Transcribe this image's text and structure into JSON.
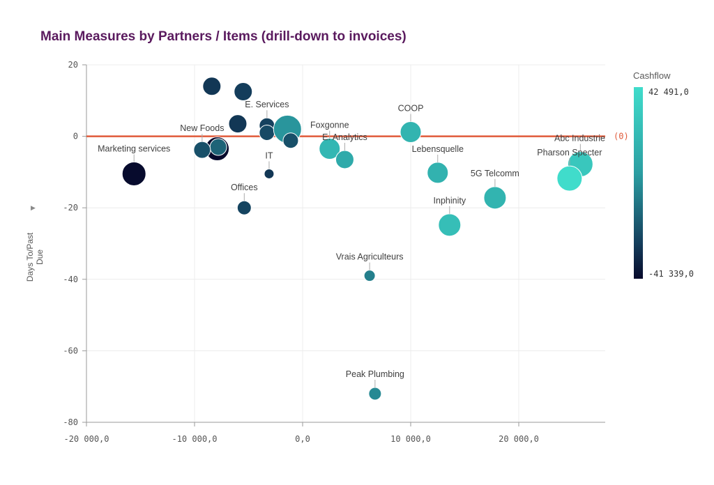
{
  "title": "Main Measures by Partners / Items (drill-down to invoices)",
  "colors": {
    "title": "#5a1a5e",
    "reference_line": "#e05a3a",
    "gradient": [
      "#070a2c",
      "#15425f",
      "#2b9ea2",
      "#40dccb"
    ]
  },
  "chart_data": {
    "type": "scatter",
    "title": "Main Measures by Partners / Items (drill-down to invoices)",
    "xlabel": "",
    "ylabel": "Days To/Past Due",
    "xlim": [
      -20000,
      28000
    ],
    "ylim": [
      -80,
      20
    ],
    "x_ticks": [
      "-20 000,0",
      "-10 000,0",
      "0,0",
      "10 000,0",
      "20 000,0"
    ],
    "y_ticks": [
      "20",
      "0",
      "-20",
      "-40",
      "-60",
      "-80"
    ],
    "grid": true,
    "reference_line": {
      "y": 0,
      "label": "(0)"
    },
    "color_legend": {
      "title": "Cashflow",
      "max_label": "42 491,0",
      "min_label": "-41 339,0",
      "min": -41339,
      "max": 42491
    },
    "points": [
      {
        "name": "",
        "x": -8400,
        "y": 14,
        "size": 13,
        "cashflow": -28000
      },
      {
        "name": "",
        "x": -5500,
        "y": 12.5,
        "size": 13,
        "cashflow": -26000
      },
      {
        "name": "",
        "x": -6000,
        "y": 3.5,
        "size": 13,
        "cashflow": -28000
      },
      {
        "name": "E. Services",
        "x": -3300,
        "y": 3,
        "size": 11,
        "cashflow": -25000
      },
      {
        "name": "",
        "x": -3300,
        "y": 1,
        "size": 11,
        "cashflow": -22000
      },
      {
        "name": "",
        "x": -1400,
        "y": 2,
        "size": 20,
        "cashflow": 2000
      },
      {
        "name": "",
        "x": -1100,
        "y": -1.2,
        "size": 11,
        "cashflow": -20000
      },
      {
        "name": "",
        "x": -7900,
        "y": -3.5,
        "size": 17,
        "cashflow": -41339
      },
      {
        "name": "",
        "x": -7800,
        "y": -3,
        "size": 12,
        "cashflow": -14000
      },
      {
        "name": "New Foods",
        "x": -9300,
        "y": -3.8,
        "size": 12,
        "cashflow": -20000
      },
      {
        "name": "Marketing services",
        "x": -15600,
        "y": -10.5,
        "size": 17,
        "cashflow": -41000
      },
      {
        "name": "IT",
        "x": -3100,
        "y": -10.5,
        "size": 7,
        "cashflow": -28000
      },
      {
        "name": "Offices",
        "x": -5400,
        "y": -20,
        "size": 10,
        "cashflow": -24000
      },
      {
        "name": "Foxgonne",
        "x": 2500,
        "y": -3.5,
        "size": 15,
        "cashflow": 20000
      },
      {
        "name": "E. Analytics",
        "x": 3900,
        "y": -6.5,
        "size": 13,
        "cashflow": 12000
      },
      {
        "name": "COOP",
        "x": 10000,
        "y": 1.2,
        "size": 15,
        "cashflow": 18000
      },
      {
        "name": "Lebensquelle",
        "x": 12500,
        "y": -10.2,
        "size": 15,
        "cashflow": 17000
      },
      {
        "name": "5G Telcomm",
        "x": 17800,
        "y": -17.2,
        "size": 16,
        "cashflow": 18000
      },
      {
        "name": "Inphinity",
        "x": 13600,
        "y": -24.8,
        "size": 16,
        "cashflow": 24000
      },
      {
        "name": "Abc Industrie",
        "x": 25700,
        "y": -7.8,
        "size": 18,
        "cashflow": 30000
      },
      {
        "name": "Pharson Specter",
        "x": 24700,
        "y": -11.8,
        "size": 18,
        "cashflow": 42491
      },
      {
        "name": "Vrais Agriculteurs",
        "x": 6200,
        "y": -39,
        "size": 8,
        "cashflow": -5000
      },
      {
        "name": "Peak Plumbing",
        "x": 6700,
        "y": -72,
        "size": 9,
        "cashflow": -2000
      }
    ]
  }
}
